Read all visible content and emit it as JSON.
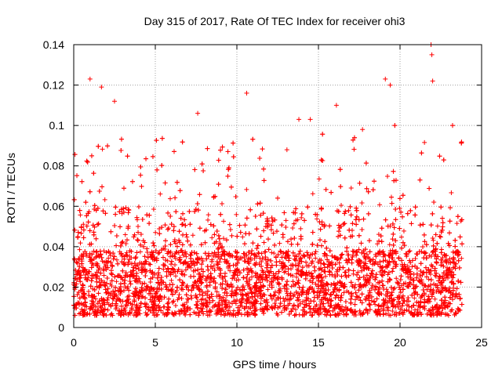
{
  "chart_data": {
    "type": "scatter",
    "title": "Day 315 of 2017, Rate Of TEC Index for receiver ohi3",
    "xlabel": "GPS time / hours",
    "ylabel": "ROTI / TECUs",
    "xlim": [
      0,
      25
    ],
    "ylim": [
      0,
      0.14
    ],
    "xticks": [
      "0",
      "5",
      "10",
      "15",
      "20",
      "25"
    ],
    "yticks": [
      "0",
      "0.02",
      "0.04",
      "0.06",
      "0.08",
      "0.1",
      "0.12",
      "0.14"
    ],
    "grid": true,
    "marker": "+",
    "series_color": "#ff0000",
    "x_range_of_points": [
      0,
      23.8
    ],
    "outliers": [
      {
        "x": 1.0,
        "y": 0.123
      },
      {
        "x": 1.7,
        "y": 0.119
      },
      {
        "x": 2.5,
        "y": 0.112
      },
      {
        "x": 10.6,
        "y": 0.116
      },
      {
        "x": 19.1,
        "y": 0.123
      },
      {
        "x": 19.4,
        "y": 0.12
      },
      {
        "x": 21.9,
        "y": 0.14
      },
      {
        "x": 21.95,
        "y": 0.135
      },
      {
        "x": 22.0,
        "y": 0.122
      },
      {
        "x": 16.1,
        "y": 0.11
      },
      {
        "x": 7.6,
        "y": 0.106
      },
      {
        "x": 13.8,
        "y": 0.103
      },
      {
        "x": 14.5,
        "y": 0.103
      },
      {
        "x": 17.7,
        "y": 0.098
      }
    ]
  }
}
